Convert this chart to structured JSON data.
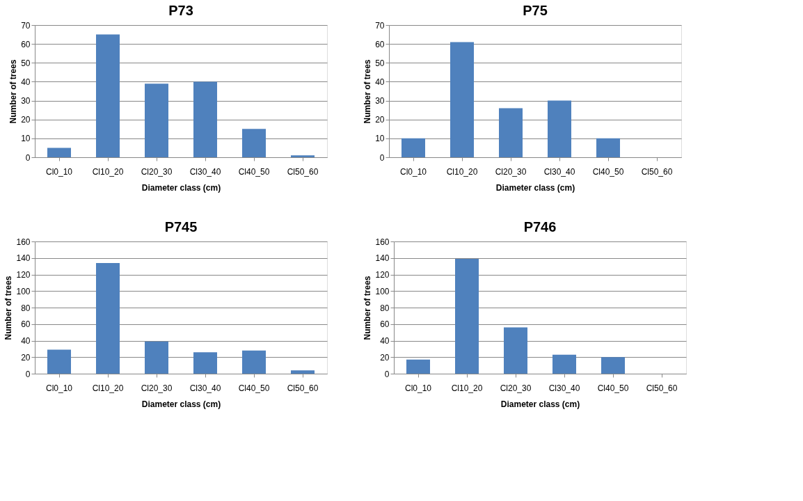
{
  "chart_data": [
    {
      "type": "bar",
      "title": "P73",
      "xlabel": "Diameter class  (cm)",
      "ylabel": "Number of trees",
      "categories": [
        "Cl0_10",
        "Cl10_20",
        "Cl20_30",
        "Cl30_40",
        "Cl40_50",
        "Cl50_60"
      ],
      "values": [
        5,
        65,
        39,
        40,
        15,
        1
      ],
      "color": "#4f81bd",
      "ylim": [
        0,
        70
      ],
      "yticks": [
        0,
        10,
        20,
        30,
        40,
        50,
        60,
        70
      ],
      "grid": "y"
    },
    {
      "type": "bar",
      "title": "P75",
      "xlabel": "Diameter class  (cm)",
      "ylabel": "Number of trees",
      "categories": [
        "Cl0_10",
        "Cl10_20",
        "Cl20_30",
        "Cl30_40",
        "Cl40_50",
        "Cl50_60"
      ],
      "values": [
        10,
        61,
        26,
        30,
        10,
        0
      ],
      "color": "#4f81bd",
      "ylim": [
        0,
        70
      ],
      "yticks": [
        0,
        10,
        20,
        30,
        40,
        50,
        60,
        70
      ],
      "grid": "y"
    },
    {
      "type": "bar",
      "title": "P745",
      "xlabel": "Diameter class  (cm)",
      "ylabel": "Number of trees",
      "categories": [
        "Cl0_10",
        "Cl10_20",
        "Cl20_30",
        "Cl30_40",
        "Cl40_50",
        "Cl50_60"
      ],
      "values": [
        29,
        134,
        39,
        26,
        28,
        4
      ],
      "color": "#4f81bd",
      "ylim": [
        0,
        160
      ],
      "yticks": [
        0,
        20,
        40,
        60,
        80,
        100,
        120,
        140,
        160
      ],
      "grid": "y"
    },
    {
      "type": "bar",
      "title": "P746",
      "xlabel": "Diameter class  (cm)",
      "ylabel": "Number of trees",
      "categories": [
        "Cl0_10",
        "Cl10_20",
        "Cl20_30",
        "Cl30_40",
        "Cl40_50",
        "Cl50_60"
      ],
      "values": [
        17,
        139,
        56,
        23,
        20,
        0
      ],
      "color": "#4f81bd",
      "ylim": [
        0,
        160
      ],
      "yticks": [
        0,
        20,
        40,
        60,
        80,
        100,
        120,
        140,
        160
      ],
      "grid": "y"
    }
  ]
}
